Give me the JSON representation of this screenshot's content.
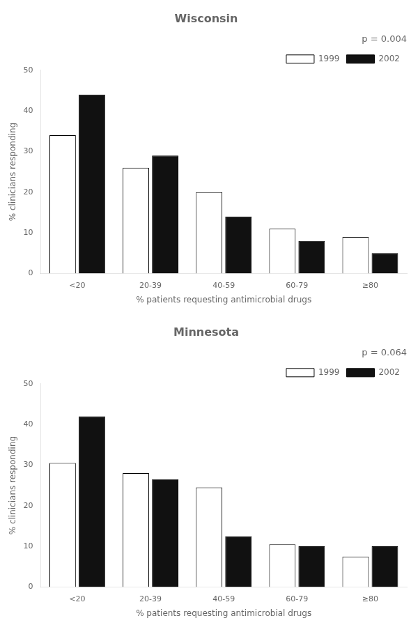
{
  "chart_data": [
    {
      "type": "bar",
      "title": "Wisconsin",
      "categories": [
        "<20",
        "20-39",
        "40-59",
        "60-79",
        "≥80"
      ],
      "series": [
        {
          "name": "1999",
          "color": "#ffffff",
          "values": [
            34,
            26,
            20,
            11,
            9
          ]
        },
        {
          "name": "2002",
          "color": "#111111",
          "values": [
            44,
            29,
            14,
            8,
            5
          ]
        }
      ],
      "xlabel": "% patients requesting antimicrobial drugs",
      "ylabel": "% clinicians responding",
      "ylim": [
        0,
        50
      ],
      "yticks": [
        0,
        10,
        20,
        30,
        40,
        50
      ],
      "annotations": [
        "p = 0.004"
      ],
      "legend": "upper right",
      "grid": false
    },
    {
      "type": "bar",
      "title": "Minnesota",
      "categories": [
        "<20",
        "20-39",
        "40-59",
        "60-79",
        "≥80"
      ],
      "series": [
        {
          "name": "1999",
          "color": "#ffffff",
          "values": [
            30.5,
            28,
            24.5,
            10.5,
            7.5
          ]
        },
        {
          "name": "2002",
          "color": "#111111",
          "values": [
            42,
            26.5,
            12.5,
            10,
            10
          ]
        }
      ],
      "xlabel": "% patients requesting antimicrobial drugs",
      "ylabel": "% clinicians responding",
      "ylim": [
        0,
        50
      ],
      "yticks": [
        0,
        10,
        20,
        30,
        40,
        50
      ],
      "annotations": [
        "p = 0.064"
      ],
      "legend": "upper right",
      "grid": false
    }
  ]
}
